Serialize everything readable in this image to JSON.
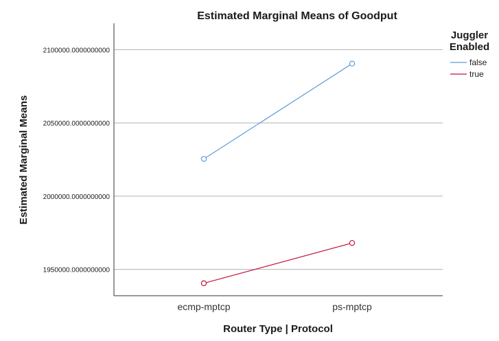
{
  "chart_data": {
    "type": "line",
    "title": "Estimated Marginal Means of Goodput",
    "xlabel": "Router Type | Protocol",
    "ylabel": "Estimated Marginal Means",
    "categories": [
      "ecmp-mptcp",
      "ps-mptcp"
    ],
    "ylim": [
      1932000,
      2118000
    ],
    "yticks": [
      1950000,
      2000000,
      2050000,
      2100000
    ],
    "ytick_labels": [
      "1950000.0000000000",
      "2000000.0000000000",
      "2050000.0000000000",
      "2100000.0000000000"
    ],
    "grid": "horizontal",
    "legend": {
      "title_lines": [
        "Juggler",
        "Enabled"
      ],
      "placement": "top-right"
    },
    "series": [
      {
        "name": "false",
        "color": "#5b9bd5",
        "values": [
          2025400,
          2090500
        ]
      },
      {
        "name": "true",
        "color": "#c0143c",
        "values": [
          1940500,
          1968000
        ]
      }
    ]
  }
}
